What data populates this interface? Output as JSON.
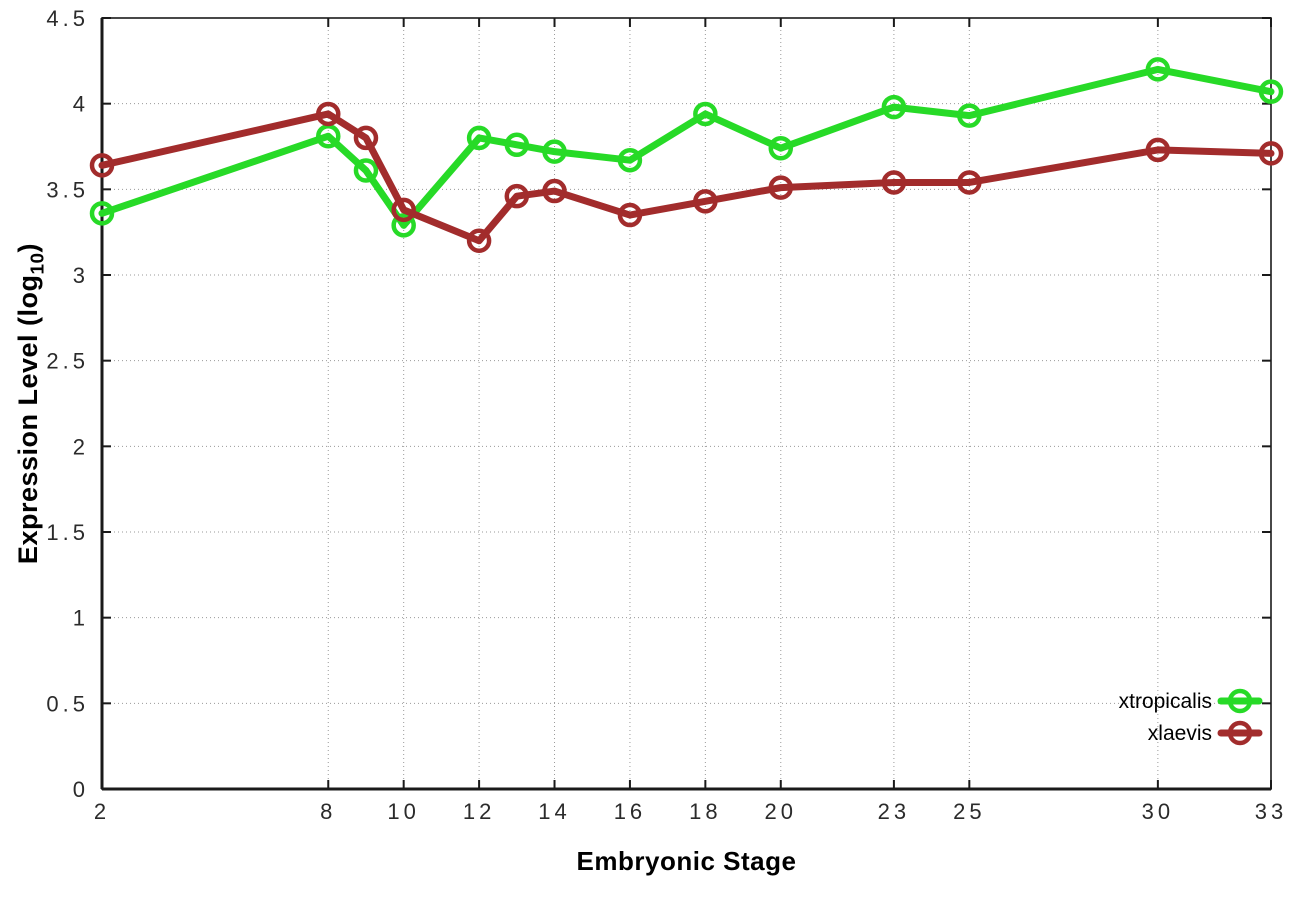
{
  "chart_data": {
    "type": "line",
    "title": "",
    "xlabel": "Embryonic Stage",
    "ylabel": "Expression Level (log10)",
    "ylabel_parts": {
      "main": "Expression Level (log",
      "sub": "10",
      "close": ")"
    },
    "x": [
      2,
      8,
      9,
      10,
      12,
      13,
      14,
      16,
      18,
      20,
      23,
      25,
      30,
      33
    ],
    "series": [
      {
        "name": "xtropicalis",
        "color": "#27DA27",
        "values": [
          3.36,
          3.81,
          3.61,
          3.29,
          3.8,
          3.76,
          3.72,
          3.67,
          3.94,
          3.74,
          3.98,
          3.93,
          4.2,
          4.07
        ]
      },
      {
        "name": "xlaevis",
        "color": "#A22C2C",
        "values": [
          3.64,
          3.94,
          3.8,
          3.38,
          3.2,
          3.46,
          3.49,
          3.35,
          3.43,
          3.51,
          3.54,
          3.54,
          3.73,
          3.71
        ]
      }
    ],
    "xlim": [
      2,
      33
    ],
    "ylim": [
      0,
      4.5
    ],
    "x_ticks": [
      2,
      8,
      10,
      12,
      14,
      16,
      18,
      20,
      23,
      25,
      30,
      33
    ],
    "x_tick_labels": [
      "2",
      "8",
      "10",
      "12",
      "14",
      "16",
      "18",
      "20",
      "23",
      "25",
      "30",
      "33"
    ],
    "y_ticks": [
      0,
      0.5,
      1,
      1.5,
      2,
      2.5,
      3,
      3.5,
      4,
      4.5
    ],
    "y_tick_labels": [
      "0",
      "0.5",
      "1",
      "1.5",
      "2",
      "2.5",
      "3",
      "3.5",
      "4",
      "4.5"
    ],
    "grid": true,
    "legend_position": "bottom-right",
    "marker": "open-circle",
    "colors": {
      "grid": "#9A9A9A",
      "axis": "#1A1A1A",
      "tick_text": "#2B2B2B",
      "background": "#FFFFFF"
    }
  }
}
